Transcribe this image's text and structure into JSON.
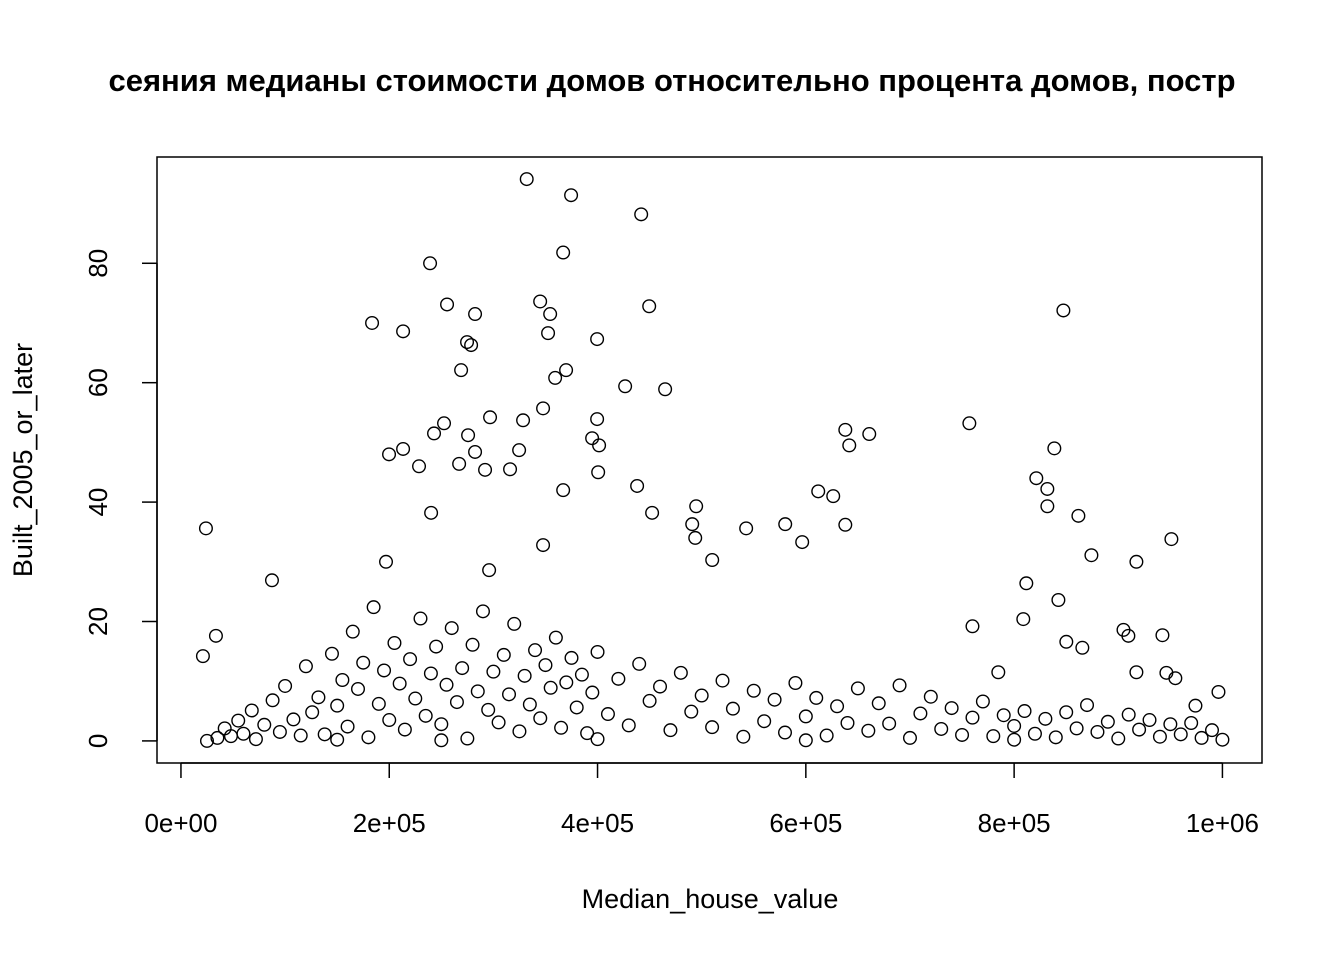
{
  "chart_data": {
    "type": "scatter",
    "title": "сеяния медианы стоимости домов относительно процента домов, постр",
    "xlabel": "Median_house_value",
    "ylabel": "Built_2005_or_later",
    "xlim": [
      -23000,
      1038000
    ],
    "ylim": [
      -3.7,
      97.8
    ],
    "xticks": [
      {
        "value": 0,
        "label": "0e+00"
      },
      {
        "value": 200000,
        "label": "2e+05"
      },
      {
        "value": 400000,
        "label": "4e+05"
      },
      {
        "value": 600000,
        "label": "6e+05"
      },
      {
        "value": 800000,
        "label": "8e+05"
      },
      {
        "value": 1000000,
        "label": "1e+06"
      }
    ],
    "yticks": [
      0,
      20,
      40,
      60,
      80
    ],
    "color": "#000000",
    "x": [
      332000,
      374600,
      441900,
      367000,
      239200,
      847300,
      449600,
      344900,
      255500,
      282400,
      354500,
      183500,
      213300,
      352500,
      399600,
      274700,
      278600,
      369800,
      269000,
      359300,
      426500,
      464900,
      347700,
      296800,
      328500,
      399600,
      252600,
      757000,
      243000,
      275700,
      637900,
      660900,
      641700,
      394800,
      401500,
      324700,
      213300,
      838600,
      199800,
      282400,
      267100,
      228600,
      400600,
      292000,
      316000,
      821300,
      831900,
      438000,
      611900,
      626300,
      367000,
      831900,
      494700,
      240200,
      452400,
      861700,
      580200,
      490900,
      542700,
      637900,
      24000,
      596500,
      951000,
      493800,
      874200,
      917400,
      510100,
      196900,
      347700,
      295900,
      811700,
      842500,
      87400,
      905000,
      942400,
      909700,
      760000,
      808800,
      850100,
      865500,
      33600,
      21100,
      917400,
      946200,
      954800,
      996200,
      974100,
      784800,
      35000,
      42000,
      48000,
      55000,
      60000,
      68000,
      72000,
      80000,
      88000,
      95000,
      100000,
      108000,
      115000,
      120000,
      126000,
      132000,
      138000,
      145000,
      150000,
      155000,
      160000,
      165000,
      170000,
      175000,
      180000,
      185000,
      190000,
      195000,
      200000,
      205000,
      210000,
      215000,
      220000,
      225000,
      230000,
      235000,
      240000,
      245000,
      250000,
      255000,
      260000,
      265000,
      270000,
      275000,
      280000,
      285000,
      290000,
      295000,
      300000,
      305000,
      310000,
      315000,
      320000,
      325000,
      330000,
      335000,
      340000,
      345000,
      350000,
      355000,
      360000,
      365000,
      370000,
      375000,
      380000,
      385000,
      390000,
      395000,
      400000,
      410000,
      420000,
      430000,
      440000,
      450000,
      460000,
      470000,
      480000,
      490000,
      500000,
      510000,
      520000,
      530000,
      540000,
      550000,
      560000,
      570000,
      580000,
      590000,
      600000,
      610000,
      620000,
      630000,
      640000,
      650000,
      660000,
      670000,
      680000,
      690000,
      700000,
      710000,
      720000,
      730000,
      740000,
      750000,
      760000,
      770000,
      780000,
      790000,
      800000,
      810000,
      820000,
      830000,
      840000,
      850000,
      860000,
      870000,
      880000,
      890000,
      900000,
      910000,
      920000,
      930000,
      940000,
      950000,
      960000,
      970000,
      980000,
      990000,
      1000000,
      25000,
      150000,
      250000,
      400000,
      600000,
      800000
    ],
    "values": [
      94.1,
      91.4,
      88.2,
      81.8,
      80.0,
      72.1,
      72.8,
      73.6,
      73.1,
      71.5,
      71.5,
      70.0,
      68.6,
      68.3,
      67.3,
      66.8,
      66.3,
      62.1,
      62.1,
      60.8,
      59.4,
      58.9,
      55.7,
      54.2,
      53.7,
      53.9,
      53.2,
      53.2,
      51.5,
      51.2,
      52.1,
      51.4,
      49.5,
      50.7,
      49.5,
      48.7,
      48.9,
      49.0,
      48.0,
      48.4,
      46.4,
      46.0,
      45.0,
      45.4,
      45.5,
      44.0,
      42.2,
      42.7,
      41.8,
      41.0,
      42.0,
      39.3,
      39.3,
      38.2,
      38.2,
      37.7,
      36.3,
      36.3,
      35.6,
      36.2,
      35.6,
      33.3,
      33.8,
      34.0,
      31.1,
      30.0,
      30.3,
      30.0,
      32.8,
      28.6,
      26.4,
      23.6,
      26.9,
      18.6,
      17.7,
      17.6,
      19.2,
      20.4,
      16.6,
      15.6,
      17.6,
      14.2,
      11.5,
      11.4,
      10.5,
      8.2,
      5.9,
      11.5,
      0.5,
      2.1,
      0.8,
      3.4,
      1.2,
      5.1,
      0.3,
      2.7,
      6.8,
      1.5,
      9.2,
      3.6,
      0.9,
      12.5,
      4.8,
      7.3,
      1.1,
      14.6,
      5.9,
      10.2,
      2.4,
      18.3,
      8.7,
      13.1,
      0.6,
      22.4,
      6.2,
      11.8,
      3.5,
      16.4,
      9.6,
      1.9,
      13.7,
      7.1,
      20.5,
      4.2,
      11.3,
      15.8,
      2.8,
      9.4,
      18.9,
      6.5,
      12.2,
      0.4,
      16.1,
      8.3,
      21.7,
      5.2,
      11.6,
      3.1,
      14.4,
      7.8,
      19.6,
      1.6,
      10.9,
      6.1,
      15.2,
      3.8,
      12.7,
      8.9,
      17.3,
      2.2,
      9.8,
      13.9,
      5.6,
      11.1,
      1.3,
      8.1,
      14.9,
      4.5,
      10.4,
      2.6,
      12.9,
      6.7,
      9.1,
      1.8,
      11.4,
      4.9,
      7.6,
      2.3,
      10.1,
      5.4,
      0.7,
      8.4,
      3.3,
      6.9,
      1.4,
      9.7,
      4.1,
      7.2,
      0.9,
      5.8,
      3.0,
      8.8,
      1.7,
      6.3,
      2.9,
      9.3,
      0.5,
      4.6,
      7.4,
      2.0,
      5.5,
      1.0,
      3.9,
      6.6,
      0.8,
      4.3,
      2.5,
      5.0,
      1.2,
      3.7,
      0.6,
      4.8,
      2.1,
      6.0,
      1.5,
      3.2,
      0.4,
      4.4,
      1.9,
      3.5,
      0.7,
      2.8,
      1.1,
      3.0,
      0.5,
      1.8,
      0.2,
      0,
      0.2,
      0.1,
      0.3,
      0.1,
      0.2
    ]
  }
}
